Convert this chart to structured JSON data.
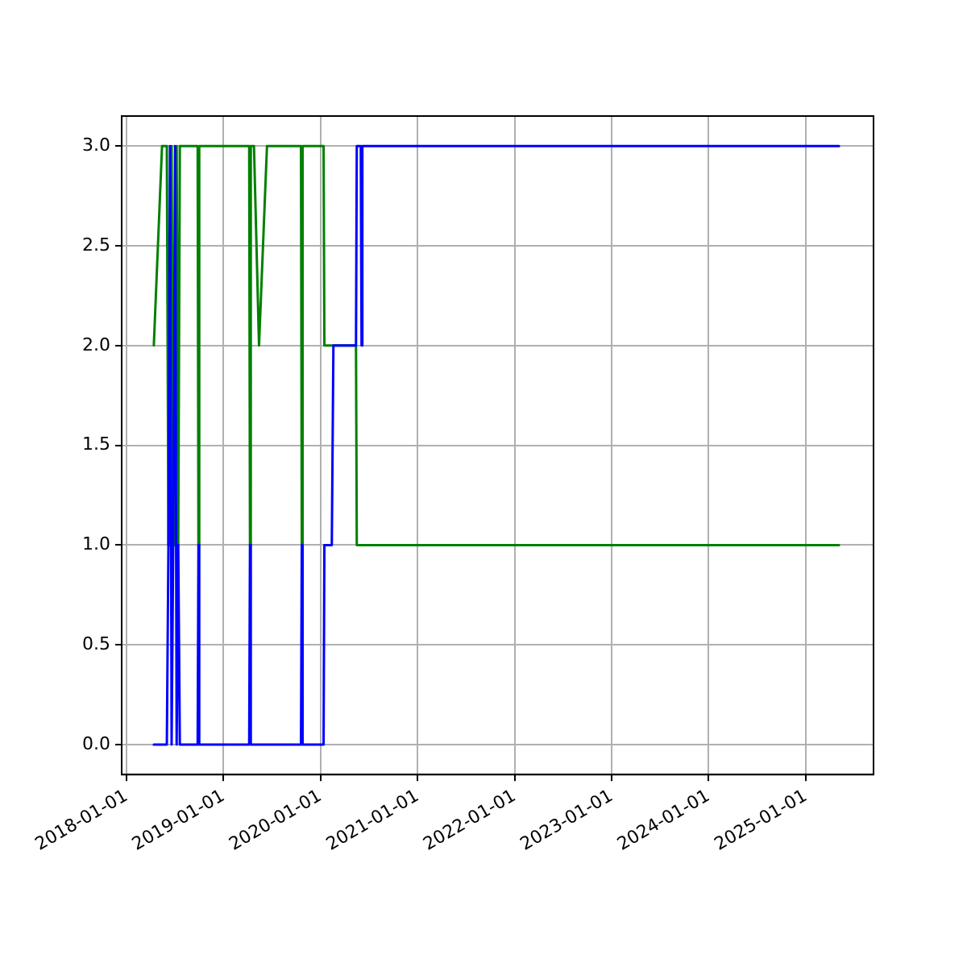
{
  "chart_data": {
    "type": "line",
    "x": [
      "2018-04-14",
      "2018-05-15",
      "2018-06-02",
      "2018-06-08",
      "2018-06-14",
      "2018-06-20",
      "2018-06-26",
      "2018-07-03",
      "2018-07-09",
      "2018-07-15",
      "2018-07-21",
      "2018-09-26",
      "2018-09-29",
      "2018-10-02",
      "2019-04-08",
      "2019-04-11",
      "2019-04-14",
      "2019-04-26",
      "2019-05-15",
      "2019-06-14",
      "2019-10-20",
      "2019-10-23",
      "2019-10-26",
      "2020-01-13",
      "2020-01-16",
      "2020-02-13",
      "2020-02-19",
      "2020-05-14",
      "2020-05-17",
      "2020-06-01",
      "2020-06-04",
      "2020-06-07",
      "2025-05-06"
    ],
    "series": [
      {
        "color": "#0000ff",
        "values": [
          0,
          0,
          0,
          1,
          3,
          0,
          1,
          3,
          0,
          1,
          0,
          0,
          1,
          0,
          0,
          1,
          0,
          0,
          0,
          0,
          0,
          1,
          0,
          0,
          1,
          1,
          2,
          2,
          3,
          3,
          2,
          3,
          3
        ]
      },
      {
        "color": "#008000",
        "values": [
          2,
          3,
          3,
          1,
          1,
          3,
          1,
          1,
          3,
          1,
          3,
          3,
          1,
          3,
          3,
          1,
          3,
          3,
          2,
          3,
          3,
          1,
          3,
          3,
          2,
          2,
          2,
          2,
          1,
          1,
          1,
          1,
          1
        ]
      }
    ],
    "xlim": [
      "2017-12-14",
      "2025-09-13"
    ],
    "xticks": [
      "2018-01-01",
      "2019-01-01",
      "2020-01-01",
      "2021-01-01",
      "2022-01-01",
      "2023-01-01",
      "2024-01-01",
      "2025-01-01"
    ],
    "ylim": [
      -0.15,
      3.15
    ],
    "yticks": [
      {
        "value": 0,
        "label": "0.0"
      },
      {
        "value": 0.5,
        "label": "0.5"
      },
      {
        "value": 1,
        "label": "1.0"
      },
      {
        "value": 1.5,
        "label": "1.5"
      },
      {
        "value": 2,
        "label": "2.0"
      },
      {
        "value": 2.5,
        "label": "2.5"
      },
      {
        "value": 3,
        "label": "3.0"
      }
    ],
    "grid": true,
    "legend": false,
    "marker": "none",
    "line_style": "solid"
  }
}
